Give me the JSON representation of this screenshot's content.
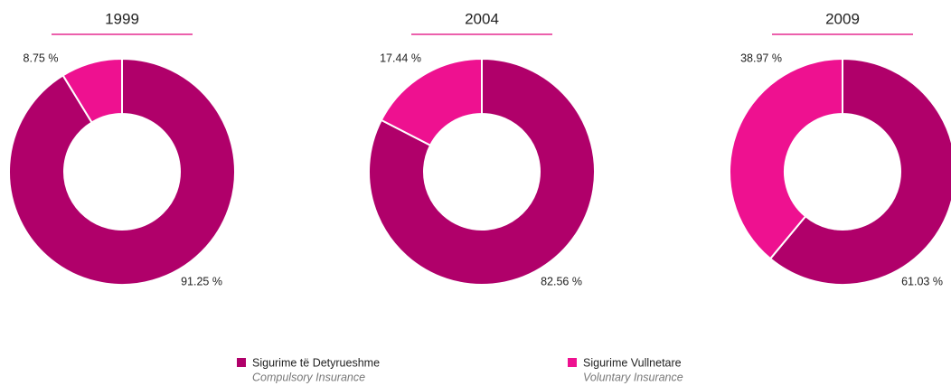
{
  "chart_data": [
    {
      "type": "donut",
      "title": "1999",
      "values": [
        91.25,
        8.75
      ],
      "value_labels": [
        "91.25 %",
        "8.75 %"
      ]
    },
    {
      "type": "donut",
      "title": "2004",
      "values": [
        82.56,
        17.44
      ],
      "value_labels": [
        "82.56 %",
        "17.44 %"
      ]
    },
    {
      "type": "donut",
      "title": "2009",
      "values": [
        61.03,
        38.97
      ],
      "value_labels": [
        "61.03 %",
        "38.97 %"
      ]
    }
  ],
  "legend": [
    {
      "name": "Sigurime të Detyrueshme",
      "subtitle": "Compulsory Insurance",
      "color": "#b0006a"
    },
    {
      "name": "Sigurime Vullnetare",
      "subtitle": "Voluntary Insurance",
      "color": "#ee1190"
    }
  ]
}
